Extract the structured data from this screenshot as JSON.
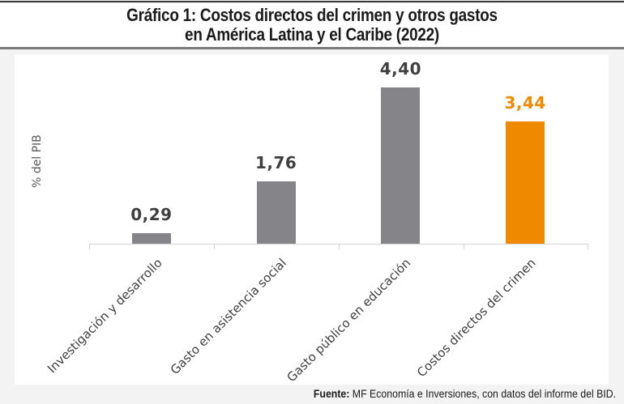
{
  "header": {
    "title_line1": "Gráfico 1: Costos directos del crimen y otros gastos",
    "title_line2": "en América Latina y el Caribe (2022)"
  },
  "chart": {
    "ylabel": "% del PIB"
  },
  "footer": {
    "source_label": "Fuente:",
    "source_text": " MF Economía e Inversiones, con datos del informe del BID."
  },
  "colors": {
    "gray_bar": "#858488",
    "highlight_bar": "#ef8a00",
    "gray_value_text": "#3f3f3f",
    "highlight_value_text": "#ef8a00"
  },
  "chart_data": {
    "type": "bar",
    "title": "Gráfico 1: Costos directos del crimen y otros gastos en América Latina y el Caribe (2022)",
    "xlabel": "",
    "ylabel": "% del PIB",
    "categories": [
      "Investigación y desarrollo",
      "Gasto en asistencia social",
      "Gasto público en educación",
      "Costos directos del crimen"
    ],
    "values": [
      0.29,
      1.76,
      4.4,
      3.44
    ],
    "value_labels": [
      "0,29",
      "1,76",
      "4,40",
      "3,44"
    ],
    "highlighted_category": "Costos directos del crimen",
    "ylim": [
      0,
      4.5
    ],
    "grid": false,
    "legend": null,
    "source": "Fuente: MF Economía e Inversiones, con datos del informe del BID."
  }
}
